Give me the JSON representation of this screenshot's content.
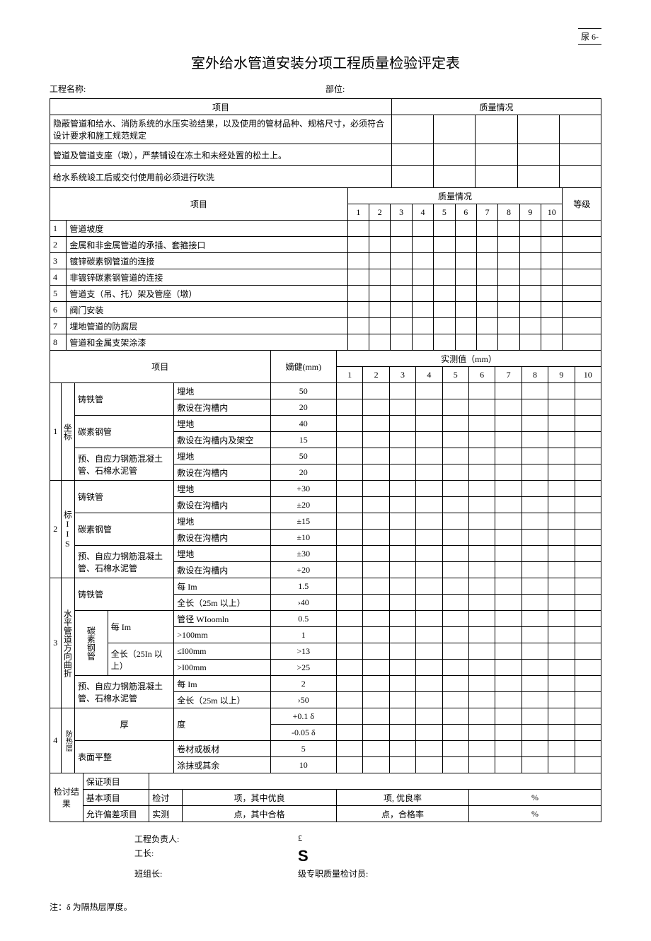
{
  "pageCode": "尿 6-",
  "title": "室外给水管道安装分项工程质量检验评定表",
  "header": {
    "projLabel": "工程名称:",
    "deptLabel": "部位:"
  },
  "section1": {
    "projHeader": "项目",
    "qualHeader": "质量情况",
    "rows": [
      "隐蔽管道和给水、消防系统的水压实验结果，以及使用的管材品种、规格尺寸，必须符合设计要求和施工规范规定",
      "管道及管道支座（墩），严禁铺设在冻土和未经处置的松土上。",
      "给水系统竣工后或交付使用前必须进行吹洗"
    ]
  },
  "section2": {
    "projHeader": "项目",
    "qualHeader": "质量情况",
    "gradeHeader": "等级",
    "nums": [
      "1",
      "2",
      "3",
      "4",
      "5",
      "6",
      "7",
      "8",
      "9",
      "10"
    ],
    "items": [
      {
        "n": "1",
        "t": "管道坡度"
      },
      {
        "n": "2",
        "t": "金属和非金属管道的承插、套箍接口"
      },
      {
        "n": "3",
        "t": "镀锌碳素钢管道的连接"
      },
      {
        "n": "4",
        "t": "非镀锌碳素钢管道的连接"
      },
      {
        "n": "5",
        "t": "管道支（吊、托）架及管座（墩）"
      },
      {
        "n": "6",
        "t": "阀门安装"
      },
      {
        "n": "7",
        "t": "埋地管道的防腐层"
      },
      {
        "n": "8",
        "t": "管道和金属支架涂漆"
      }
    ]
  },
  "section3": {
    "projHeader": "项目",
    "tolHeader": "嫡健(mm)",
    "measHeader": "实测值（mm）",
    "nums": [
      "1",
      "2",
      "3",
      "4",
      "5",
      "6",
      "7",
      "8",
      "9",
      "10"
    ],
    "g1": {
      "n": "1",
      "cat": "坐标",
      "r": [
        {
          "m": "铸铁管",
          "s": "埋地",
          "v": "50"
        },
        {
          "m": "",
          "s": "敷设在沟槽内",
          "v": "20"
        },
        {
          "m": "碳素钢管",
          "s": "埋地",
          "v": "40"
        },
        {
          "m": "",
          "s": "敷设在沟槽内及架空",
          "v": "15"
        },
        {
          "m": "预、自应力钢筋混凝土管、石棉水泥管",
          "s": "埋地",
          "v": "50"
        },
        {
          "m": "",
          "s": "敷设在沟槽内",
          "v": "20"
        }
      ]
    },
    "g2": {
      "n": "2",
      "cat": "标IIS",
      "r": [
        {
          "m": "铸铁管",
          "s": "埋地",
          "v": "+30"
        },
        {
          "m": "",
          "s": "敷设在沟槽内",
          "v": "±20"
        },
        {
          "m": "碳素钢管",
          "s": "埋地",
          "v": "±15"
        },
        {
          "m": "",
          "s": "敷设在沟槽内",
          "v": "±10"
        },
        {
          "m": "预、自应力钢筋混凝土管、石棉水泥管",
          "s": "埋地",
          "v": "±30"
        },
        {
          "m": "",
          "s": "敷设在沟槽内",
          "v": "+20"
        }
      ]
    },
    "g3": {
      "n": "3",
      "cat": "水平管道方向曲折",
      "r": [
        {
          "m": "铸铁管",
          "m2": "",
          "s": "每 Im",
          "v": "1.5"
        },
        {
          "m": "",
          "m2": "",
          "s": "全长（25m 以上）",
          "v": "›40"
        },
        {
          "m": "碳素钢管",
          "m2": "每 Im",
          "s": "管径 WIoomln",
          "v": "0.5"
        },
        {
          "m": "",
          "m2": "",
          "s": ">100mm",
          "v": "1"
        },
        {
          "m": "",
          "m2": "全长（25In 以上）",
          "s": "≤I00mm",
          "v": ">13"
        },
        {
          "m": "",
          "m2": "",
          "s": ">I00mm",
          "v": ">25"
        },
        {
          "m": "预、自应力钢筋混凝土管、石棉水泥管",
          "m2": "",
          "s": "每 Im",
          "v": "2"
        },
        {
          "m": "",
          "m2": "",
          "s": "全长（25m 以上）",
          "v": "›50"
        }
      ]
    },
    "g4": {
      "n": "4",
      "cat": "防热层",
      "r": [
        {
          "m": "厚",
          "s": "度",
          "v": "+0.1 δ"
        },
        {
          "m": "",
          "s": "",
          "v": "-0.05 δ"
        },
        {
          "m": "表面平整",
          "s": "卷材或板材",
          "v": "5"
        },
        {
          "m": "",
          "s": "涂抹或其余",
          "v": "10"
        }
      ]
    }
  },
  "review": {
    "label": "检讨结果",
    "r1": "保证项目",
    "r2a": "基本项目",
    "r2b": "检讨",
    "r2c": "项，其中优良",
    "r2d": "项, 优良率",
    "r2e": "%",
    "r3a": "允许偏差项目",
    "r3b": "实测",
    "r3c": "点，其中合格",
    "r3d": "点，合格率",
    "r3e": "%"
  },
  "sign": {
    "projMgr": "工程负责人:",
    "gong": "工长:",
    "team": "班组长:",
    "pound": "£",
    "s": "S",
    "insp": "级专职质量检讨员:"
  },
  "note": "注：δ 为隔热层厚度。"
}
